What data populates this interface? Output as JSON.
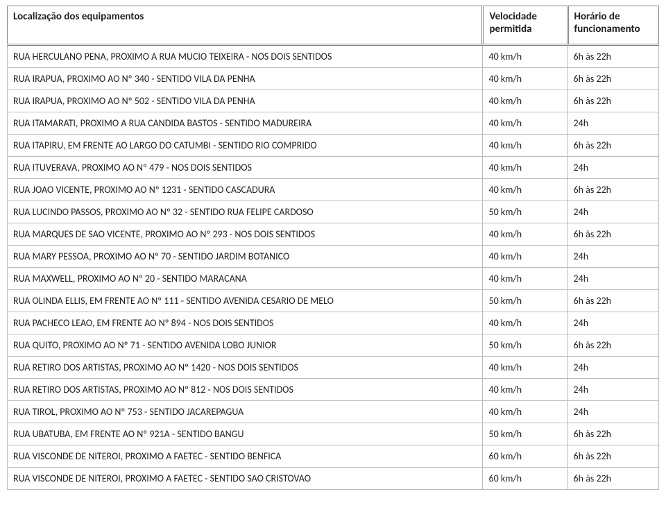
{
  "table": {
    "headers": {
      "location": "Localização dos equipamentos",
      "speed_line1": "Velocidade",
      "speed_line2": "permitida",
      "hours_line1": "Horário de",
      "hours_line2": "funcionamento"
    },
    "rows": [
      {
        "loc": "RUA HERCULANO PENA, PROXIMO A RUA MUCIO TEIXEIRA - NOS DOIS SENTIDOS",
        "speed": "40 km/h",
        "hours": "6h às 22h"
      },
      {
        "loc": "RUA IRAPUA, PROXIMO AO Nº 340 - SENTIDO VILA DA PENHA",
        "speed": "40 km/h",
        "hours": "6h às 22h"
      },
      {
        "loc": "RUA IRAPUA, PROXIMO AO Nº 502 - SENTIDO VILA DA PENHA",
        "speed": "40 km/h",
        "hours": "6h às 22h"
      },
      {
        "loc": "RUA ITAMARATI, PROXIMO A RUA CANDIDA BASTOS - SENTIDO MADUREIRA",
        "speed": "40 km/h",
        "hours": "24h"
      },
      {
        "loc": "RUA ITAPIRU, EM FRENTE AO LARGO DO CATUMBI - SENTIDO RIO COMPRIDO",
        "speed": "40 km/h",
        "hours": "6h às 22h"
      },
      {
        "loc": "RUA ITUVERAVA, PROXIMO AO Nº 479 - NOS DOIS SENTIDOS",
        "speed": "40 km/h",
        "hours": "24h"
      },
      {
        "loc": "RUA JOAO VICENTE, PROXIMO AO Nº 1231 - SENTIDO CASCADURA",
        "speed": "40 km/h",
        "hours": "6h às 22h"
      },
      {
        "loc": "RUA LUCINDO PASSOS, PROXIMO AO Nº 32 - SENTIDO RUA FELIPE CARDOSO",
        "speed": "50 km/h",
        "hours": "24h"
      },
      {
        "loc": "RUA MARQUES DE SAO VICENTE, PROXIMO AO Nº 293 - NOS DOIS SENTIDOS",
        "speed": "40 km/h",
        "hours": "6h às 22h"
      },
      {
        "loc": "RUA MARY PESSOA, PROXIMO AO Nº 70 - SENTIDO JARDIM BOTANICO",
        "speed": "40 km/h",
        "hours": "24h"
      },
      {
        "loc": "RUA MAXWELL, PROXIMO AO Nº 20 - SENTIDO MARACANA",
        "speed": "40 km/h",
        "hours": "24h"
      },
      {
        "loc": "RUA OLINDA ELLIS, EM FRENTE AO Nº 111 - SENTIDO AVENIDA CESARIO DE MELO",
        "speed": "50 km/h",
        "hours": "6h às 22h"
      },
      {
        "loc": "RUA PACHECO LEAO, EM FRENTE AO Nº 894 - NOS DOIS SENTIDOS",
        "speed": "40 km/h",
        "hours": "24h"
      },
      {
        "loc": "RUA QUITO, PROXIMO AO Nº 71 - SENTIDO AVENIDA LOBO JUNIOR",
        "speed": "50 km/h",
        "hours": "6h às 22h"
      },
      {
        "loc": "RUA RETIRO DOS ARTISTAS, PROXIMO AO Nº 1420 - NOS DOIS SENTIDOS",
        "speed": "40 km/h",
        "hours": "24h"
      },
      {
        "loc": "RUA RETIRO DOS ARTISTAS, PROXIMO AO Nº 812 - NOS DOIS SENTIDOS",
        "speed": "40 km/h",
        "hours": "24h"
      },
      {
        "loc": "RUA TIROL, PROXIMO AO Nº 753 - SENTIDO JACAREPAGUA",
        "speed": "40 km/h",
        "hours": "24h"
      },
      {
        "loc": "RUA UBATUBA, EM FRENTE AO Nº 921A - SENTIDO BANGU",
        "speed": "50 km/h",
        "hours": "6h às 22h"
      },
      {
        "loc": "RUA VISCONDE DE NITEROI, PROXIMO A FAETEC - SENTIDO BENFICA",
        "speed": "60 km/h",
        "hours": "6h às 22h"
      },
      {
        "loc": "RUA VISCONDE DE NITEROI, PROXIMO A FAETEC - SENTIDO SAO CRISTOVAO",
        "speed": "60 km/h",
        "hours": "6h às 22h"
      }
    ]
  }
}
